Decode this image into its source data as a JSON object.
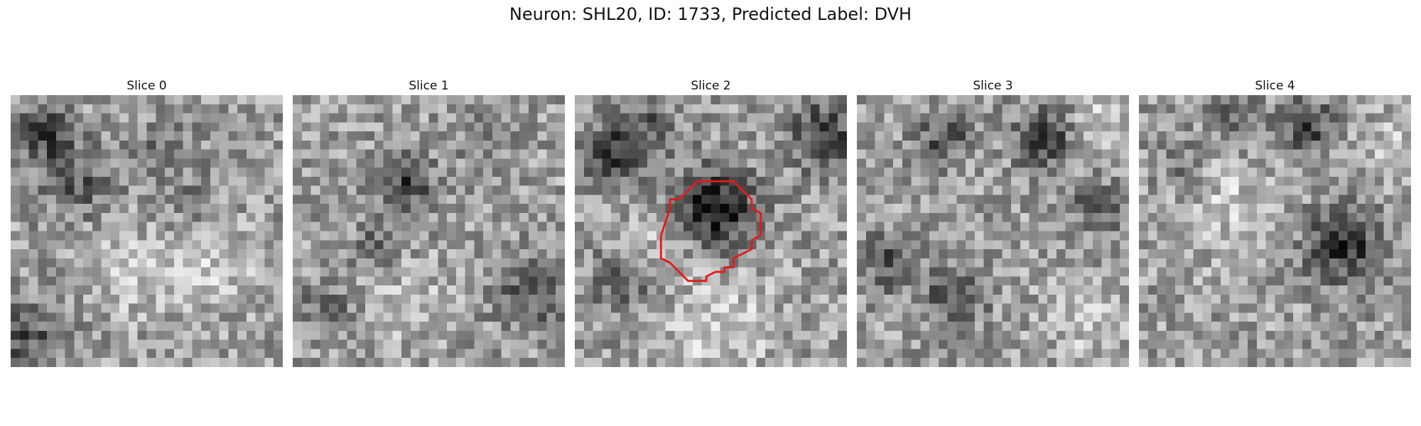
{
  "figure": {
    "title": "Neuron: SHL20, ID: 1733, Predicted Label: DVH"
  },
  "panels": [
    {
      "label": "Slice 0",
      "has_outline": false
    },
    {
      "label": "Slice 1",
      "has_outline": false
    },
    {
      "label": "Slice 2",
      "has_outline": true
    },
    {
      "label": "Slice 3",
      "has_outline": false
    },
    {
      "label": "Slice 4",
      "has_outline": false
    }
  ],
  "colors": {
    "outline": "#e31a1c"
  }
}
